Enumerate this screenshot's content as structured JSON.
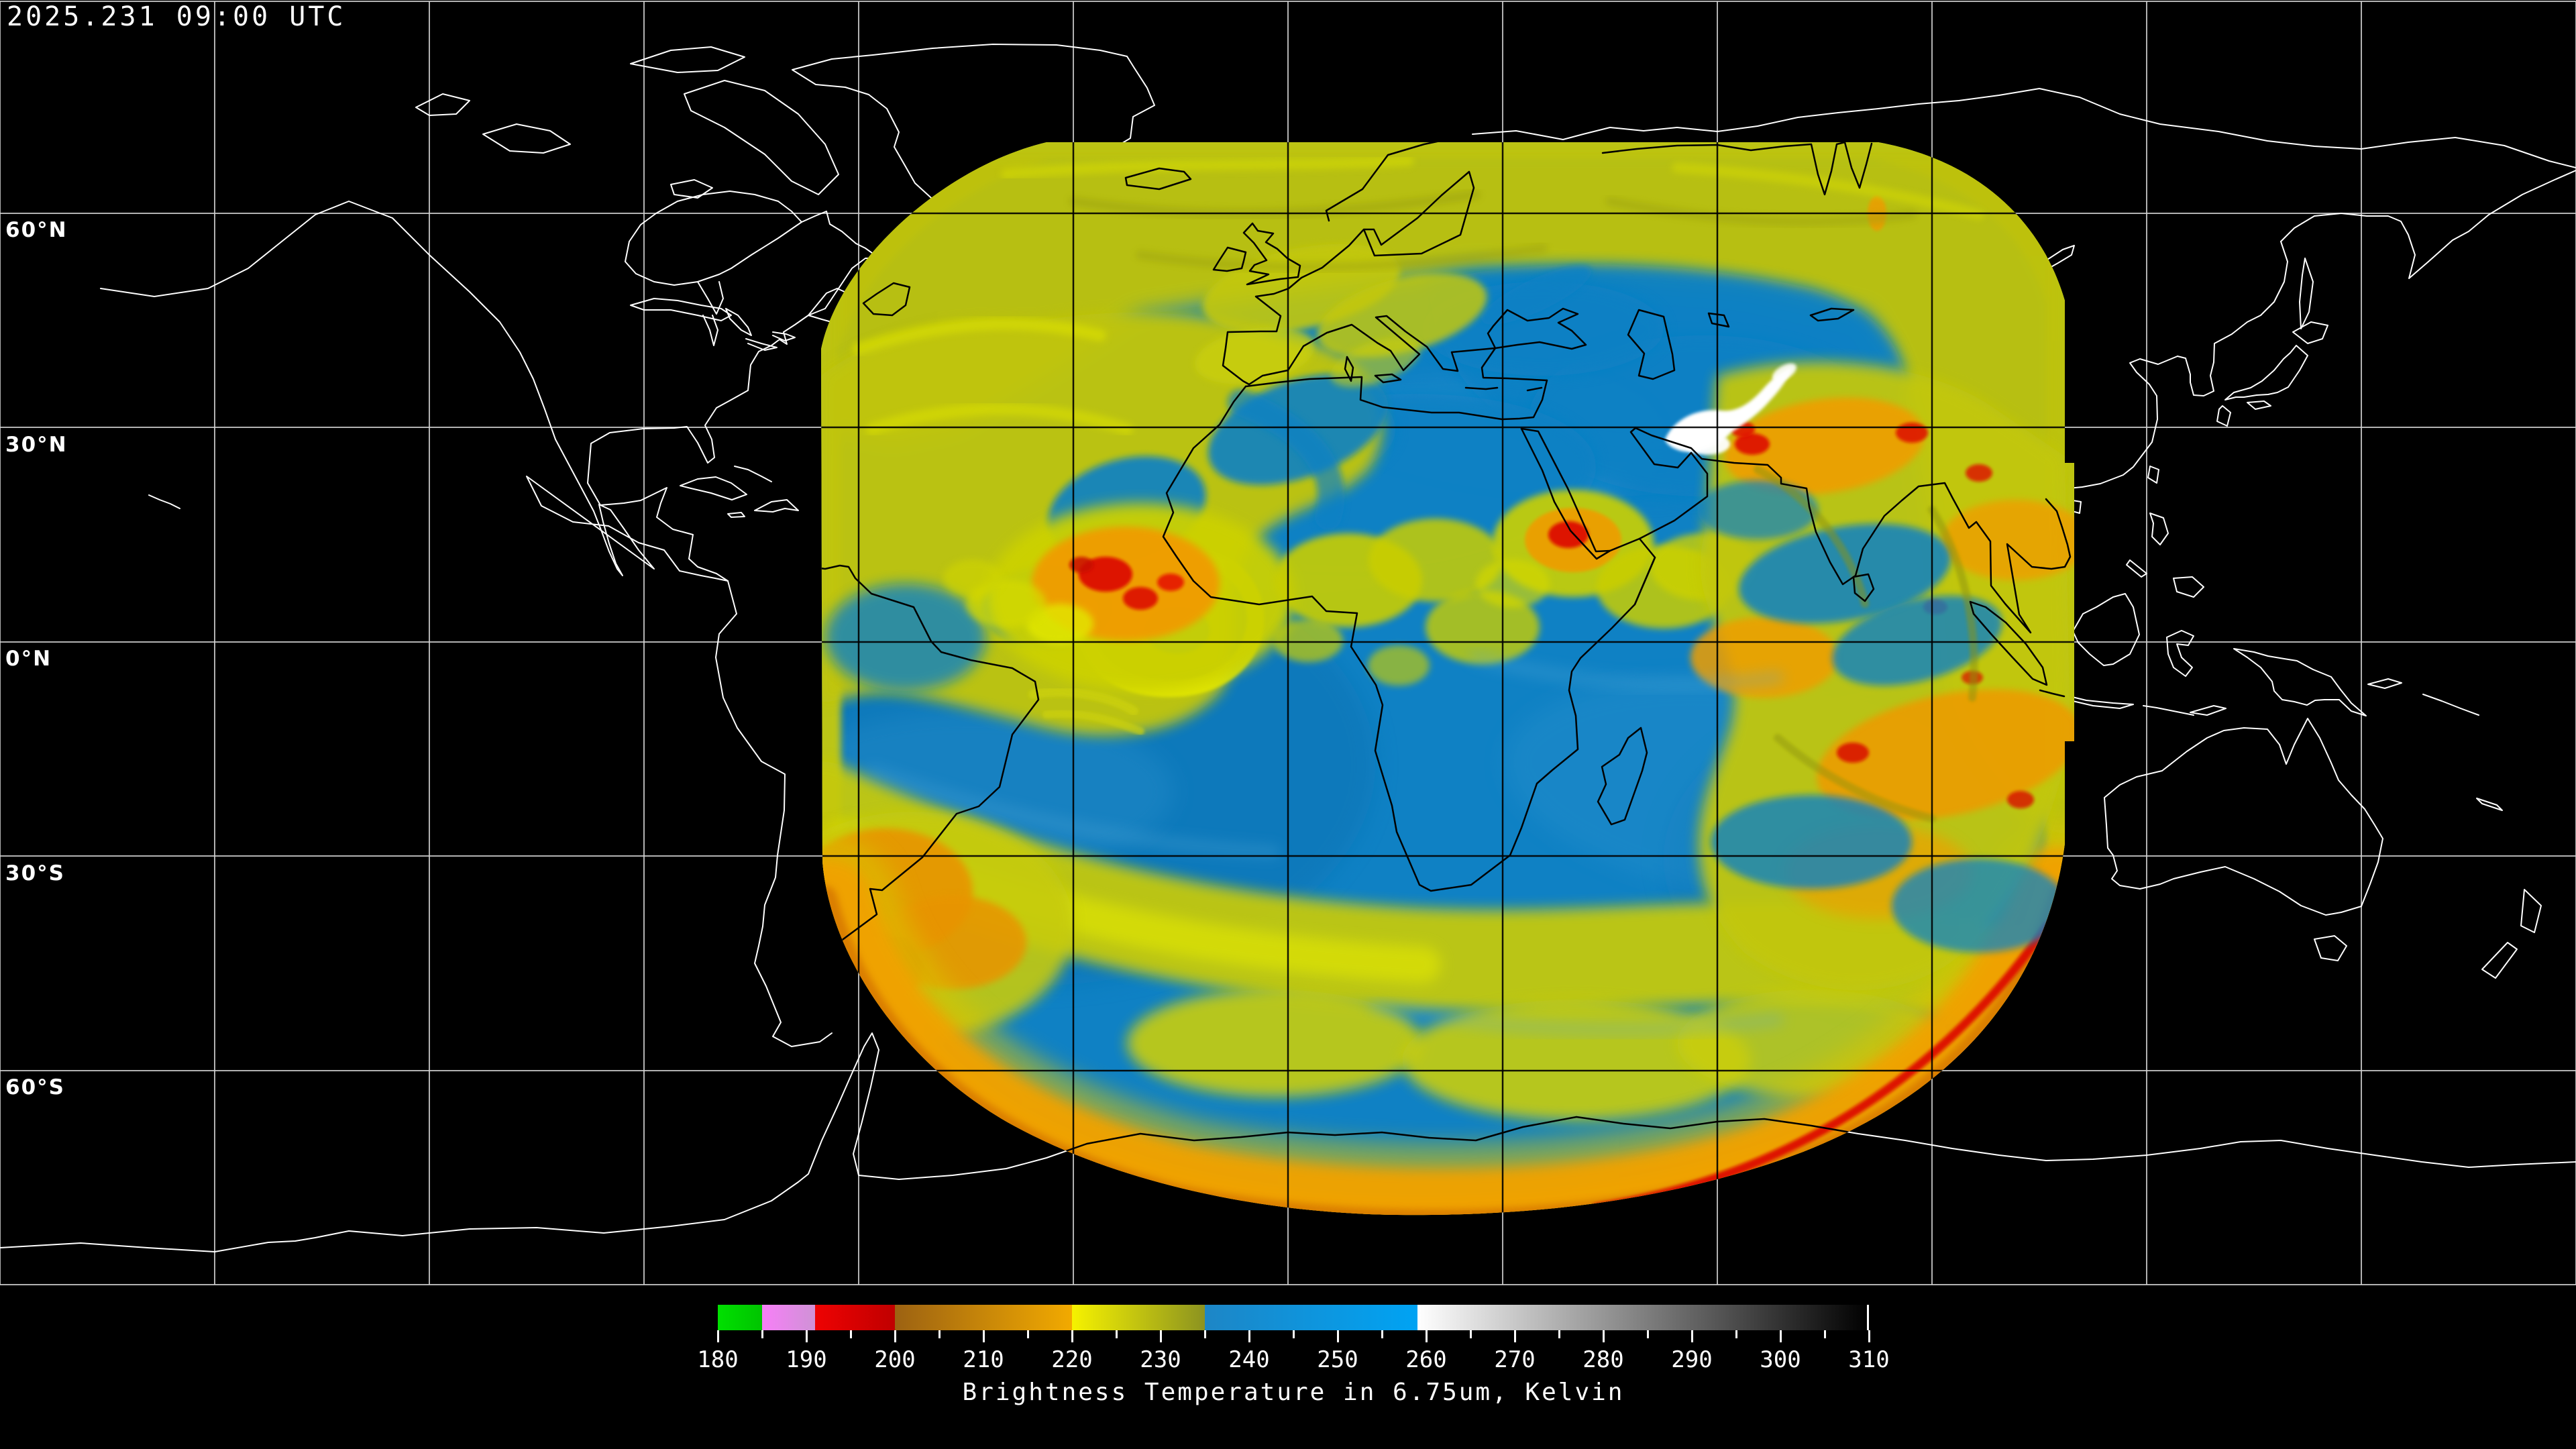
{
  "header": {
    "timestamp": "2025.231 09:00 UTC"
  },
  "map": {
    "lat_labels": [
      {
        "label": "60°N",
        "lat": 60
      },
      {
        "label": "30°N",
        "lat": 30
      },
      {
        "label": "0°N",
        "lat": 0
      },
      {
        "label": "30°S",
        "lat": -30
      },
      {
        "label": "60°S",
        "lat": -60
      }
    ],
    "grid_lon_step_deg": 30,
    "grid_lat_step_deg": 30
  },
  "colorbar": {
    "title": "Brightness Temperature in 6.75um, Kelvin",
    "min": 180,
    "max": 310,
    "major_tick_step": 10,
    "minor_tick_step": 5,
    "tick_labels": [
      180,
      190,
      200,
      210,
      220,
      230,
      240,
      250,
      260,
      270,
      280,
      290,
      300,
      310
    ],
    "segments": [
      {
        "from": 180,
        "to": 185,
        "colors": [
          "#00e000",
          "#00c400"
        ]
      },
      {
        "from": 185,
        "to": 191,
        "colors": [
          "#f77ff7",
          "#cf92d6"
        ]
      },
      {
        "from": 191,
        "to": 200,
        "colors": [
          "#ee0202",
          "#c00000"
        ]
      },
      {
        "from": 200,
        "to": 220,
        "colors": [
          "#9c6212",
          "#f2aa00"
        ]
      },
      {
        "from": 220,
        "to": 235,
        "colors": [
          "#f6f200",
          "#8c9320"
        ]
      },
      {
        "from": 235,
        "to": 259,
        "colors": [
          "#1d86c6",
          "#00a3f3"
        ]
      },
      {
        "from": 259,
        "to": 310,
        "colors": [
          "#ffffff",
          "#000000"
        ]
      }
    ]
  },
  "palette": {
    "background": "#000000",
    "grid_outside": "#d2d2d2",
    "grid_inside": "#000000",
    "coast_outside": "#ffffff",
    "coast_inside": "#000000",
    "data_blue": "#0f81c4",
    "data_yellow": "#c0c50a",
    "data_orange": "#f0a202",
    "data_red": "#dd0a02",
    "data_pink": "#ef8cf0",
    "data_green": "#08d206",
    "data_white_cloud": "#ffffff",
    "label_text": "#ffffff"
  }
}
